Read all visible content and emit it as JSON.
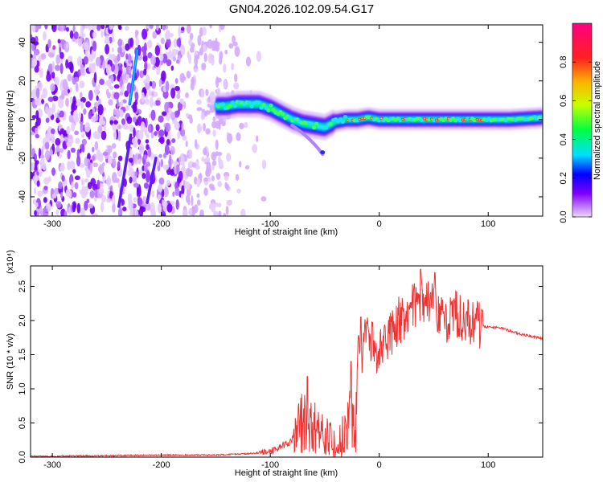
{
  "title": "GN04.2026.102.09.54.G17",
  "chart_data": [
    {
      "type": "heatmap",
      "title": "GN04.2026.102.09.54.G17",
      "xlabel": "Height of straight line (km)",
      "ylabel": "Frequency (Hz)",
      "xlim": [
        -320,
        150
      ],
      "ylim": [
        -50,
        49
      ],
      "x_ticks": [
        "-300",
        "-200",
        "-100",
        "0",
        "100"
      ],
      "x_tick_values": [
        -300,
        -200,
        -100,
        0,
        100
      ],
      "y_ticks": [
        "-40",
        "-20",
        "0",
        "20",
        "40"
      ],
      "y_tick_values": [
        -40,
        -20,
        0,
        20,
        40
      ],
      "colorbar": {
        "label": "Normalized spectral amplitude",
        "range": [
          0,
          1
        ],
        "ticks": [
          "0.0",
          "0.2",
          "0.4",
          "0.6",
          "0.8"
        ],
        "tick_values": [
          0,
          0.2,
          0.4,
          0.6,
          0.8
        ],
        "colors": [
          "#f0d8ff",
          "#8000ff",
          "#0000ff",
          "#00e0ff",
          "#00ff40",
          "#c8ff00",
          "#ffb000",
          "#ff2020",
          "#ff0080"
        ]
      },
      "ridge": {
        "x": [
          -150,
          -140,
          -130,
          -120,
          -110,
          -100,
          -90,
          -80,
          -70,
          -60,
          -50,
          -40,
          -30,
          -20,
          -10,
          0,
          20,
          40,
          60,
          80,
          100,
          120,
          150
        ],
        "freq": [
          7,
          7,
          8,
          8,
          8,
          6,
          3,
          0,
          -2,
          -3,
          -4,
          -1,
          0,
          0,
          1,
          0,
          0,
          0,
          0,
          0,
          0,
          0,
          1
        ]
      },
      "noise_streaks": [
        {
          "x": [
            -229,
            -222
          ],
          "freq": [
            8,
            36
          ]
        },
        {
          "x": [
            -239,
            -228
          ],
          "freq": [
            -45,
            -8
          ]
        },
        {
          "x": [
            -213,
            -205
          ],
          "freq": [
            -43,
            -20
          ]
        }
      ]
    },
    {
      "type": "line",
      "xlabel": "Height of straight line (km)",
      "ylabel": "SNR (10 * v/v)",
      "y_scale_label": "(x10⁴)",
      "xlim": [
        -320,
        150
      ],
      "ylim": [
        0,
        2.8
      ],
      "x_ticks": [
        "-300",
        "-200",
        "-100",
        "0",
        "100"
      ],
      "x_tick_values": [
        -300,
        -200,
        -100,
        0,
        100
      ],
      "y_ticks": [
        "0.0",
        "0.5",
        "1.0",
        "1.5",
        "2.0",
        "2.5"
      ],
      "y_tick_values": [
        0,
        0.5,
        1.0,
        1.5,
        2.0,
        2.5
      ],
      "color": "#ee3333",
      "x": [
        -320,
        -250,
        -200,
        -150,
        -120,
        -100,
        -90,
        -80,
        -75,
        -70,
        -65,
        -60,
        -55,
        -50,
        -45,
        -40,
        -35,
        -30,
        -25,
        -22,
        -20,
        -15,
        -10,
        -5,
        0,
        10,
        20,
        30,
        40,
        50,
        60,
        70,
        80,
        90,
        100,
        110,
        120,
        130,
        140,
        150
      ],
      "y": [
        0.01,
        0.02,
        0.03,
        0.03,
        0.05,
        0.08,
        0.15,
        0.25,
        0.45,
        0.7,
        0.6,
        0.35,
        0.4,
        0.3,
        0.25,
        0.2,
        0.25,
        0.4,
        0.9,
        0.15,
        1.4,
        1.6,
        1.8,
        1.6,
        1.5,
        1.8,
        2.0,
        2.2,
        2.3,
        2.2,
        2.0,
        2.1,
        2.0,
        1.95,
        1.9,
        1.9,
        1.85,
        1.8,
        1.77,
        1.73
      ],
      "spike_peaks": [
        {
          "x": -66,
          "y": 1.18
        },
        {
          "x": -59,
          "y": 0.8
        },
        {
          "x": -26,
          "y": 1.4
        },
        {
          "x": -17,
          "y": 2.05
        },
        {
          "x": 18,
          "y": 2.35
        },
        {
          "x": 38,
          "y": 2.75
        },
        {
          "x": 51,
          "y": 2.7
        },
        {
          "x": 88,
          "y": 2.1
        }
      ]
    }
  ]
}
